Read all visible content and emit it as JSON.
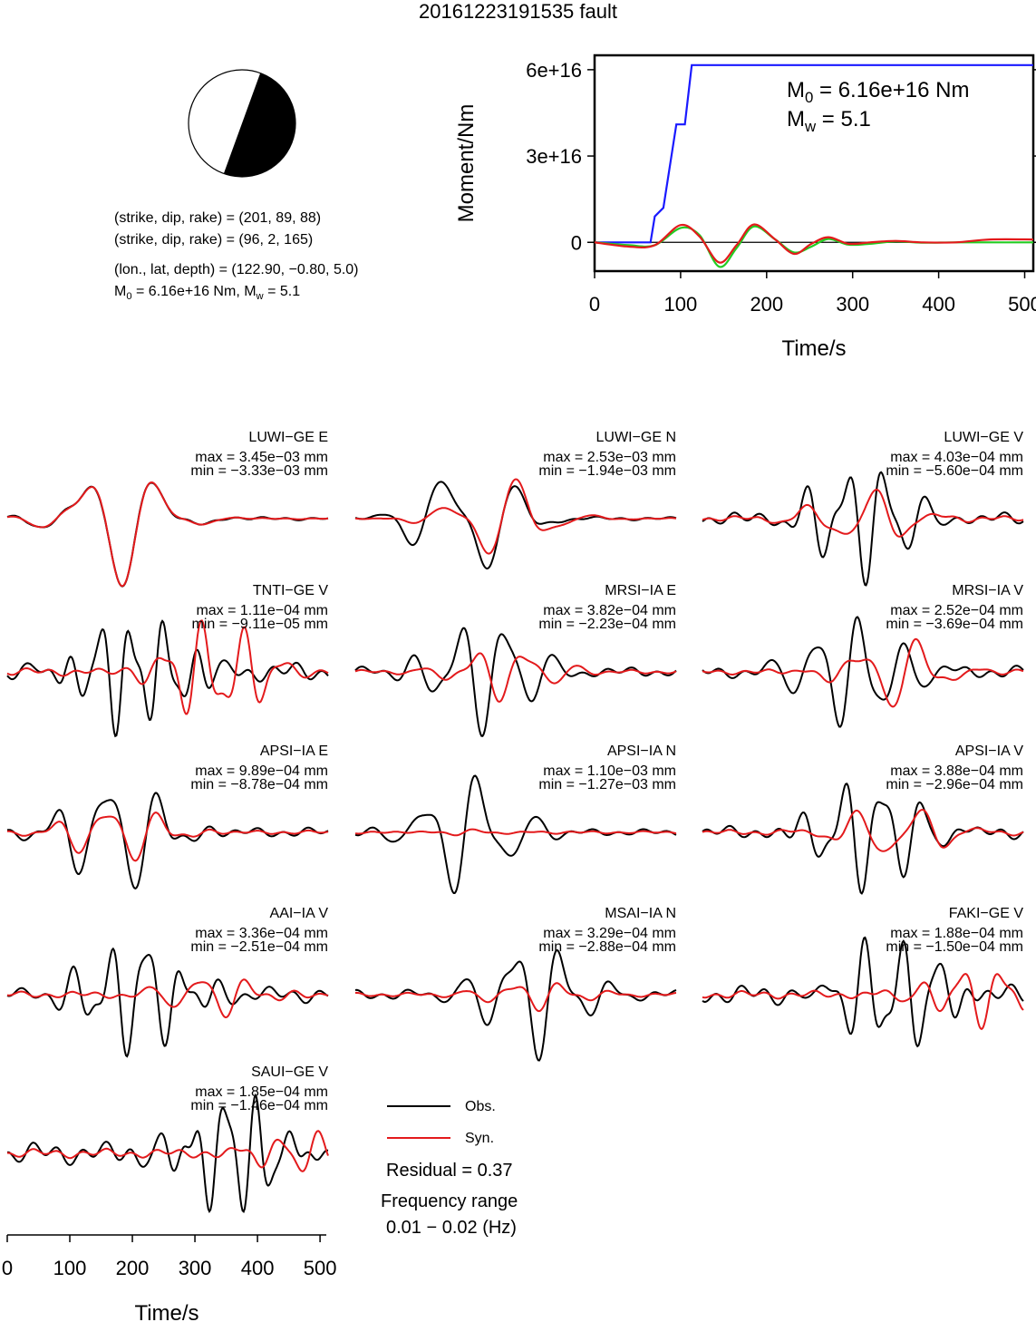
{
  "title": "20161223191535 fault",
  "mechanism": {
    "line1": "(strike, dip, rake) = (201, 89, 88)",
    "line2": "(strike, dip, rake) = (96, 2, 165)",
    "location": "(lon., lat, depth) = (122.90, −0.80, 5.0)",
    "moment_M0": "6.16e+16 Nm",
    "moment_Mw": "5.1"
  },
  "chart_data": [
    {
      "type": "line",
      "name": "moment-rate",
      "xlabel": "Time/s",
      "ylabel": "Moment/Nm",
      "xlim": [
        0,
        510
      ],
      "ylim": [
        -1e+16,
        6.5e+16
      ],
      "xticks": [
        "0",
        "100",
        "200",
        "300",
        "400",
        "500"
      ],
      "yticks": [
        "0",
        "3e+16",
        "6e+16"
      ],
      "annotation_m0": "6.16e+16 Nm",
      "annotation_mw": "5.1",
      "series": [
        {
          "color": "#1a1aff",
          "x": [
            0,
            65,
            70,
            80,
            95,
            105,
            113,
            200,
            300,
            400,
            510
          ],
          "y": [
            0,
            0,
            9000000000000000.0,
            1.2e+16,
            4.1e+16,
            4.1e+16,
            6.16e+16,
            6.16e+16,
            6.16e+16,
            6.16e+16,
            6.16e+16
          ]
        },
        {
          "color": "#22cc22",
          "x": [
            0,
            40,
            70,
            100,
            122,
            145,
            165,
            185,
            210,
            232,
            252,
            272,
            295,
            320,
            350,
            380,
            420,
            460,
            510
          ],
          "y": [
            0,
            -1000000000000000.0,
            -1000000000000000.0,
            5000000000000000.0,
            2500000000000000.0,
            -8500000000000000.0,
            -2000000000000000.0,
            5500000000000000.0,
            1000000000000000.0,
            -3500000000000000.0,
            -1500000000000000.0,
            1200000000000000.0,
            -800000000000000.0,
            -500000000000000.0,
            300000000000000.0,
            -100000000000000.0,
            0,
            0,
            0
          ]
        },
        {
          "color": "#e31a1c",
          "x": [
            0,
            40,
            70,
            100,
            122,
            145,
            165,
            185,
            210,
            232,
            252,
            272,
            295,
            320,
            350,
            380,
            420,
            460,
            510
          ],
          "y": [
            0,
            -1500000000000000.0,
            -1000000000000000.0,
            6000000000000000.0,
            2000000000000000.0,
            -7000000000000000.0,
            -1000000000000000.0,
            6200000000000000.0,
            1000000000000000.0,
            -4000000000000000.0,
            -500000000000000.0,
            1800000000000000.0,
            -500000000000000.0,
            0,
            500000000000000.0,
            0,
            0,
            1000000000000000.0,
            1000000000000000.0
          ]
        }
      ]
    },
    {
      "type": "line",
      "name": "waveforms",
      "xlabel": "Time/s",
      "xlim": [
        0,
        510
      ],
      "xticks": [
        "0",
        "100",
        "200",
        "300",
        "400",
        "500"
      ],
      "legend": {
        "obs": "Obs.",
        "syn": "Syn.",
        "obs_color": "#000000",
        "syn_color": "#e31a1c"
      },
      "residual": "Residual = 0.37",
      "frequency_label": "Frequency range",
      "frequency_value": "0.01 − 0.02 (Hz)",
      "traces": [
        {
          "station": "LUWI−GE E",
          "max": "max = 3.45e−03 mm",
          "min": "min = −3.33e−03 mm",
          "obs_amp": 1.0,
          "syn_amp": 1.0,
          "obs_freq": 1.0,
          "syn_freq": 1.0,
          "onset": 0.0,
          "syn_shift": 0.0,
          "noise": 0.05
        },
        {
          "station": "LUWI−GE N",
          "max": "max = 2.53e−03 mm",
          "min": "min = −1.94e−03 mm",
          "obs_amp": 1.0,
          "syn_amp": 0.65,
          "obs_freq": 1.1,
          "syn_freq": 1.1,
          "onset": 0.0,
          "syn_shift": 0.1,
          "noise": 0.05
        },
        {
          "station": "LUWI−GE V",
          "max": "max = 4.03e−04 mm",
          "min": "min = −5.60e−04 mm",
          "obs_amp": 1.0,
          "syn_amp": 0.45,
          "obs_freq": 2.0,
          "syn_freq": 1.2,
          "onset": 0.15,
          "syn_shift": 0.15,
          "noise": 0.2
        },
        {
          "station": "TNTI−GE V",
          "max": "max = 1.11e−04 mm",
          "min": "min = −9.11e−05 mm",
          "obs_amp": 1.0,
          "syn_amp": 0.85,
          "obs_freq": 2.5,
          "syn_freq": 2.0,
          "onset": 0.05,
          "syn_shift": 0.3,
          "noise": 0.3
        },
        {
          "station": "MRSI−IA E",
          "max": "max = 3.82e−04 mm",
          "min": "min = −2.23e−04 mm",
          "obs_amp": 1.0,
          "syn_amp": 0.45,
          "obs_freq": 1.7,
          "syn_freq": 1.5,
          "onset": 0.05,
          "syn_shift": 0.12,
          "noise": 0.15
        },
        {
          "station": "MRSI−IA V",
          "max": "max = 2.52e−04 mm",
          "min": "min = −3.69e−04 mm",
          "obs_amp": 1.0,
          "syn_amp": 0.6,
          "obs_freq": 1.8,
          "syn_freq": 1.3,
          "onset": 0.12,
          "syn_shift": 0.25,
          "noise": 0.2
        },
        {
          "station": "APSI−IA E",
          "max": "max = 9.89e−04 mm",
          "min": "min = −8.78e−04 mm",
          "obs_amp": 1.0,
          "syn_amp": 0.5,
          "obs_freq": 1.5,
          "syn_freq": 1.5,
          "onset": 0.0,
          "syn_shift": 0.0,
          "noise": 0.15
        },
        {
          "station": "APSI−IA N",
          "max": "max = 1.10e−03 mm",
          "min": "min = −1.27e−03 mm",
          "obs_amp": 1.0,
          "syn_amp": 0.05,
          "obs_freq": 1.4,
          "syn_freq": 1.4,
          "onset": 0.0,
          "syn_shift": 0.0,
          "noise": 0.1
        },
        {
          "station": "APSI−IA V",
          "max": "max = 3.88e−04 mm",
          "min": "min = −2.96e−04 mm",
          "obs_amp": 1.0,
          "syn_amp": 0.45,
          "obs_freq": 2.0,
          "syn_freq": 1.3,
          "onset": 0.18,
          "syn_shift": 0.25,
          "noise": 0.2
        },
        {
          "station": "AAI−IA V",
          "max": "max = 3.36e−04 mm",
          "min": "min = −2.51e−04 mm",
          "obs_amp": 1.0,
          "syn_amp": 0.35,
          "obs_freq": 2.2,
          "syn_freq": 1.6,
          "onset": 0.05,
          "syn_shift": 0.3,
          "noise": 0.25
        },
        {
          "station": "MSAI−IA N",
          "max": "max = 3.29e−04 mm",
          "min": "min = −2.88e−04 mm",
          "obs_amp": 1.0,
          "syn_amp": 0.25,
          "obs_freq": 1.6,
          "syn_freq": 1.6,
          "onset": 0.2,
          "syn_shift": 0.2,
          "noise": 0.15
        },
        {
          "station": "FAKI−GE V",
          "max": "max = 1.88e−04 mm",
          "min": "min = −1.50e−04 mm",
          "obs_amp": 1.0,
          "syn_amp": 0.5,
          "obs_freq": 2.2,
          "syn_freq": 2.0,
          "onset": 0.25,
          "syn_shift": 0.5,
          "noise": 0.3
        },
        {
          "station": "SAUI−GE V",
          "max": "max = 1.85e−04 mm",
          "min": "min = −1.46e−04 mm",
          "obs_amp": 1.0,
          "syn_amp": 0.4,
          "obs_freq": 2.5,
          "syn_freq": 2.0,
          "onset": 0.35,
          "syn_shift": 0.6,
          "noise": 0.35
        }
      ]
    }
  ]
}
